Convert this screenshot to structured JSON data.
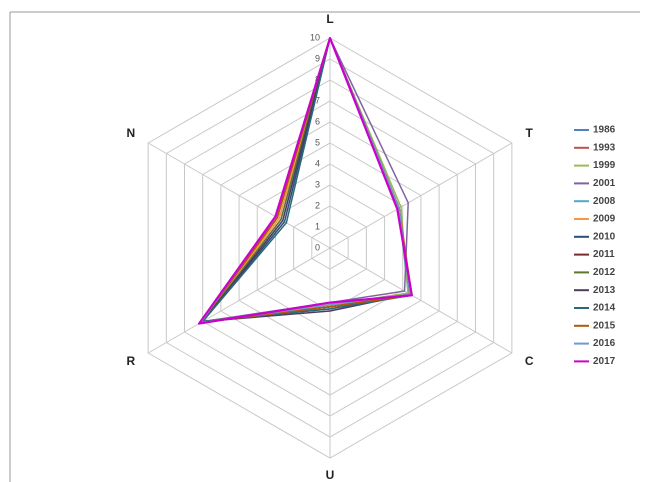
{
  "chart_data": {
    "type": "radar",
    "categories": [
      "L",
      "T",
      "C",
      "U",
      "R",
      "N"
    ],
    "ylim": [
      0,
      10
    ],
    "yticks": [
      0,
      1,
      2,
      3,
      4,
      5,
      6,
      7,
      8,
      9,
      10
    ],
    "grid": true,
    "legend": "right",
    "series": [
      {
        "name": "1986",
        "color": "#4f81bd",
        "values": [
          10,
          3.8,
          4.3,
          2.8,
          7.1,
          2.9
        ]
      },
      {
        "name": "1993",
        "color": "#c0504d",
        "values": [
          10,
          3.8,
          4.4,
          2.7,
          7.1,
          2.9
        ]
      },
      {
        "name": "1999",
        "color": "#9bbb59",
        "values": [
          10,
          3.9,
          4.3,
          2.7,
          7.0,
          2.8
        ]
      },
      {
        "name": "2001",
        "color": "#8064a2",
        "values": [
          10,
          4.3,
          4.1,
          2.6,
          7.0,
          2.7
        ]
      },
      {
        "name": "2008",
        "color": "#4bacc6",
        "values": [
          10,
          3.8,
          4.4,
          2.8,
          7.0,
          2.6
        ]
      },
      {
        "name": "2009",
        "color": "#f79646",
        "values": [
          10,
          3.7,
          4.5,
          2.7,
          7.1,
          2.8
        ]
      },
      {
        "name": "2010",
        "color": "#2c4d75",
        "values": [
          10,
          3.8,
          4.4,
          2.9,
          7.0,
          2.5
        ]
      },
      {
        "name": "2011",
        "color": "#772c2a",
        "values": [
          10,
          3.7,
          4.5,
          2.8,
          7.1,
          2.9
        ]
      },
      {
        "name": "2012",
        "color": "#5f7530",
        "values": [
          10,
          3.8,
          4.4,
          2.8,
          7.0,
          2.7
        ]
      },
      {
        "name": "2013",
        "color": "#4d3b62",
        "values": [
          10,
          3.8,
          4.4,
          3.0,
          7.0,
          2.6
        ]
      },
      {
        "name": "2014",
        "color": "#276a7c",
        "values": [
          10,
          3.7,
          4.5,
          2.9,
          7.0,
          2.4
        ]
      },
      {
        "name": "2015",
        "color": "#b65708",
        "values": [
          10,
          3.8,
          4.5,
          2.8,
          7.1,
          2.9
        ]
      },
      {
        "name": "2016",
        "color": "#729aca",
        "values": [
          10,
          3.8,
          4.4,
          2.7,
          7.1,
          3.0
        ]
      },
      {
        "name": "2017",
        "color": "#cc00cc",
        "values": [
          10,
          3.7,
          4.5,
          2.6,
          7.2,
          3.0
        ]
      }
    ]
  }
}
